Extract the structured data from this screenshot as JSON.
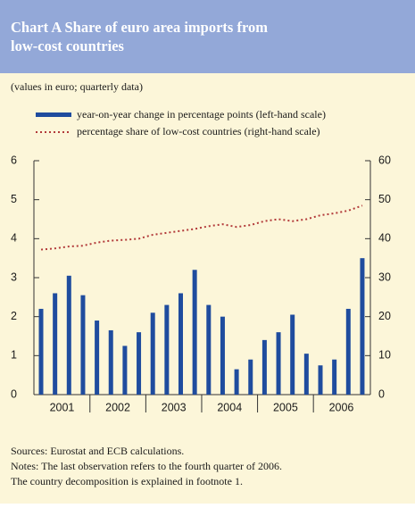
{
  "chart_data": {
    "type": "bar_line",
    "title_lines": [
      "Chart A Share of euro area imports from",
      "low-cost countries"
    ],
    "subtitle": "(values in euro; quarterly data)",
    "year_labels": [
      "2001",
      "2002",
      "2003",
      "2004",
      "2005",
      "2006"
    ],
    "series": [
      {
        "name": "year-on-year change in percentage points (left-hand scale)",
        "color": "#1f4c9e",
        "axis": "y",
        "values": [
          2.2,
          2.6,
          3.05,
          2.55,
          1.9,
          1.65,
          1.25,
          1.6,
          2.1,
          2.3,
          2.6,
          3.2,
          2.3,
          2.0,
          0.65,
          0.9,
          1.4,
          1.6,
          2.05,
          1.05,
          0.75,
          0.9,
          2.2,
          3.5
        ]
      },
      {
        "name": "percentage share of low-cost countries (right-hand scale)",
        "color": "#b23a3a",
        "axis": "y2",
        "values": [
          37.2,
          37.5,
          38,
          38.2,
          39,
          39.5,
          39.7,
          40,
          41,
          41.5,
          42,
          42.5,
          43.2,
          43.7,
          43,
          43.5,
          44.5,
          45,
          44.5,
          45,
          46,
          46.5,
          47.2,
          48.5
        ]
      }
    ],
    "ylim": [
      0,
      6
    ],
    "yticks": [
      0,
      1,
      2,
      3,
      4,
      5,
      6
    ],
    "y2lim": [
      0,
      60
    ],
    "y2ticks": [
      0,
      10,
      20,
      30,
      40,
      50,
      60
    ],
    "sources": "Sources: Eurostat and ECB calculations.",
    "notes": [
      "Notes: The last observation refers to the fourth quarter of 2006.",
      "The country decomposition is explained in footnote 1."
    ]
  }
}
